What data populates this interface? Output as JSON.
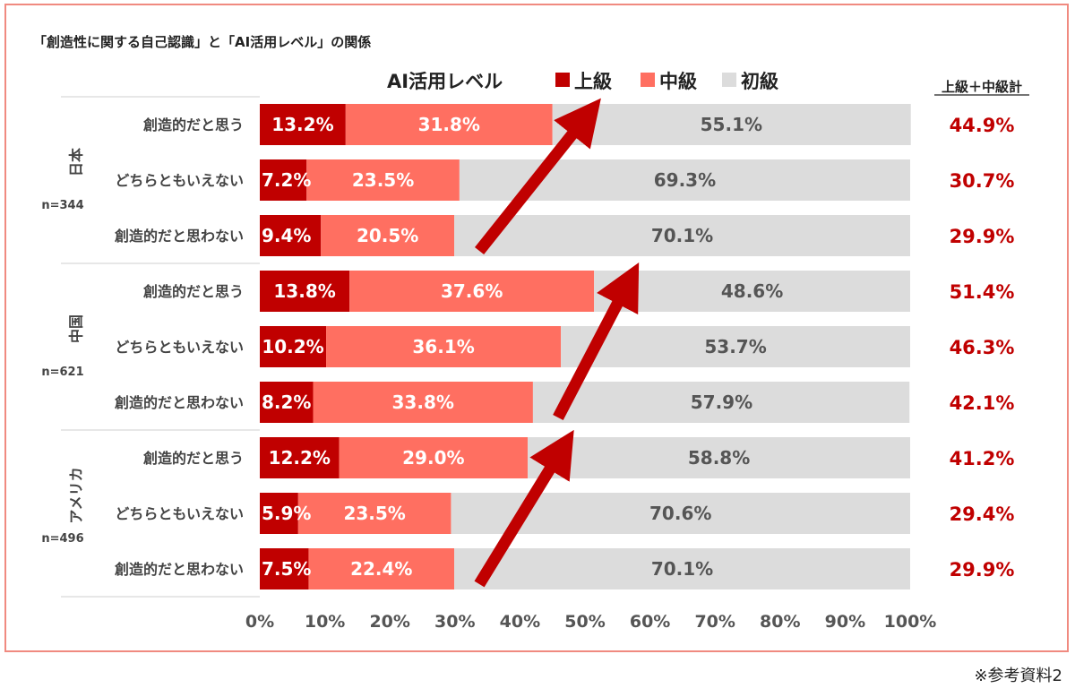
{
  "title": "「創造性に関する自己認識」と「AI活用レベル」の関係",
  "reference": "※参考資料2",
  "colors": {
    "advanced": "#c00000",
    "intermediate": "#ff6f61",
    "beginner": "#dcdcdc",
    "total": "#c00000",
    "arrow": "#c00000"
  },
  "chart_data": {
    "type": "bar",
    "stacked": true,
    "orientation": "horizontal",
    "legend_title": "AI活用レベル",
    "legend_placement": "top",
    "total_header": "上級＋中級計",
    "xlim": [
      0,
      100
    ],
    "x_ticks": [
      "0%",
      "10%",
      "20%",
      "30%",
      "40%",
      "50%",
      "60%",
      "70%",
      "80%",
      "90%",
      "100%"
    ],
    "series_names": [
      "上級",
      "中級",
      "初級"
    ],
    "groups": [
      {
        "name": "日本",
        "n": "n=344",
        "rows": [
          {
            "label": "創造的だと思う",
            "values": [
              13.2,
              31.8,
              55.1
            ],
            "value_labels": [
              "13.2%",
              "31.8%",
              "55.1%"
            ],
            "total": "44.9%"
          },
          {
            "label": "どちらともいえない",
            "values": [
              7.2,
              23.5,
              69.3
            ],
            "value_labels": [
              "7.2%",
              "23.5%",
              "69.3%"
            ],
            "total": "30.7%"
          },
          {
            "label": "創造的だと思わない",
            "values": [
              9.4,
              20.5,
              70.1
            ],
            "value_labels": [
              "9.4%",
              "20.5%",
              "70.1%"
            ],
            "total": "29.9%"
          }
        ]
      },
      {
        "name": "中国",
        "n": "n=621",
        "rows": [
          {
            "label": "創造的だと思う",
            "values": [
              13.8,
              37.6,
              48.6
            ],
            "value_labels": [
              "13.8%",
              "37.6%",
              "48.6%"
            ],
            "total": "51.4%"
          },
          {
            "label": "どちらともいえない",
            "values": [
              10.2,
              36.1,
              53.7
            ],
            "value_labels": [
              "10.2%",
              "36.1%",
              "53.7%"
            ],
            "total": "46.3%"
          },
          {
            "label": "創造的だと思わない",
            "values": [
              8.2,
              33.8,
              57.9
            ],
            "value_labels": [
              "8.2%",
              "33.8%",
              "57.9%"
            ],
            "total": "42.1%"
          }
        ]
      },
      {
        "name": "アメリカ",
        "n": "n=496",
        "rows": [
          {
            "label": "創造的だと思う",
            "values": [
              12.2,
              29.0,
              58.8
            ],
            "value_labels": [
              "12.2%",
              "29.0%",
              "58.8%"
            ],
            "total": "41.2%"
          },
          {
            "label": "どちらともいえない",
            "values": [
              5.9,
              23.5,
              70.6
            ],
            "value_labels": [
              "5.9%",
              "23.5%",
              "70.6%"
            ],
            "total": "29.4%"
          },
          {
            "label": "創造的だと思わない",
            "values": [
              7.5,
              22.4,
              70.1
            ],
            "value_labels": [
              "7.5%",
              "22.4%",
              "70.1%"
            ],
            "total": "29.9%"
          }
        ]
      }
    ]
  }
}
